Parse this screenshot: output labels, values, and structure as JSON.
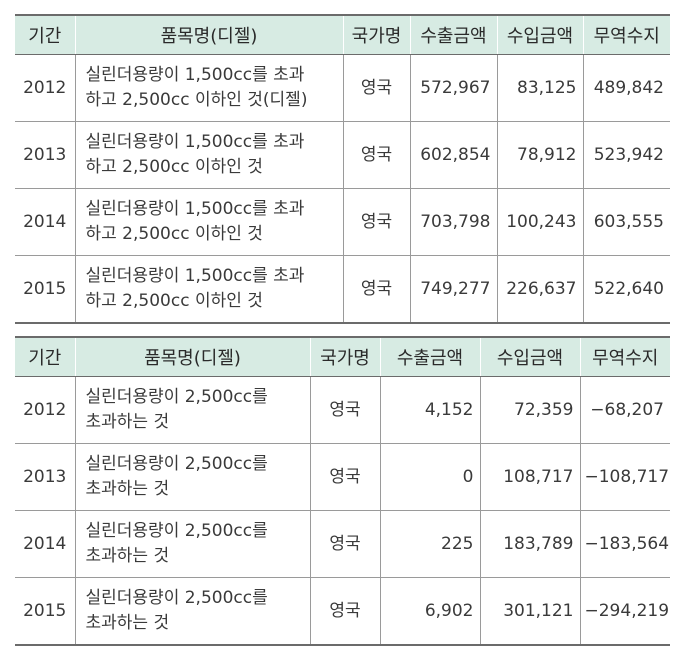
{
  "table1": {
    "headers": [
      "기간",
      "품목명(디젤)",
      "국가명",
      "수출금액",
      "수입금액",
      "무역수지"
    ],
    "rows": [
      {
        "year": "2012",
        "item_line1": "실린더용량이 1,500cc를 초과",
        "item_line2": "하고 2,500cc 이하인 것(디젤)",
        "country": "영국",
        "export": "572,967",
        "import": "83,125",
        "balance": "489,842"
      },
      {
        "year": "2013",
        "item_line1": "실린더용량이 1,500cc를 초과",
        "item_line2": "하고 2,500cc 이하인 것",
        "country": "영국",
        "export": "602,854",
        "import": "78,912",
        "balance": "523,942"
      },
      {
        "year": "2014",
        "item_line1": "실린더용량이 1,500cc를 초과",
        "item_line2": "하고 2,500cc 이하인 것",
        "country": "영국",
        "export": "703,798",
        "import": "100,243",
        "balance": "603,555"
      },
      {
        "year": "2015",
        "item_line1": "실린더용량이 1,500cc를 초과",
        "item_line2": "하고 2,500cc 이하인 것",
        "country": "영국",
        "export": "749,277",
        "import": "226,637",
        "balance": "522,640"
      }
    ]
  },
  "table2": {
    "headers": [
      "기간",
      "품목명(디젤)",
      "국가명",
      "수출금액",
      "수입금액",
      "무역수지"
    ],
    "rows": [
      {
        "year": "2012",
        "item_line1": "실린더용량이 2,500cc를",
        "item_line2": "초과하는 것",
        "country": "영국",
        "export": "4,152",
        "import": "72,359",
        "balance": "−68,207"
      },
      {
        "year": "2013",
        "item_line1": "실린더용량이 2,500cc를",
        "item_line2": "초과하는 것",
        "country": "영국",
        "export": "0",
        "import": "108,717",
        "balance": "−108,717"
      },
      {
        "year": "2014",
        "item_line1": "실린더용량이 2,500cc를",
        "item_line2": "초과하는 것",
        "country": "영국",
        "export": "225",
        "import": "183,789",
        "balance": "−183,564"
      },
      {
        "year": "2015",
        "item_line1": "실린더용량이 2,500cc를",
        "item_line2": "초과하는 것",
        "country": "영국",
        "export": "6,902",
        "import": "301,121",
        "balance": "−294,219"
      }
    ]
  }
}
